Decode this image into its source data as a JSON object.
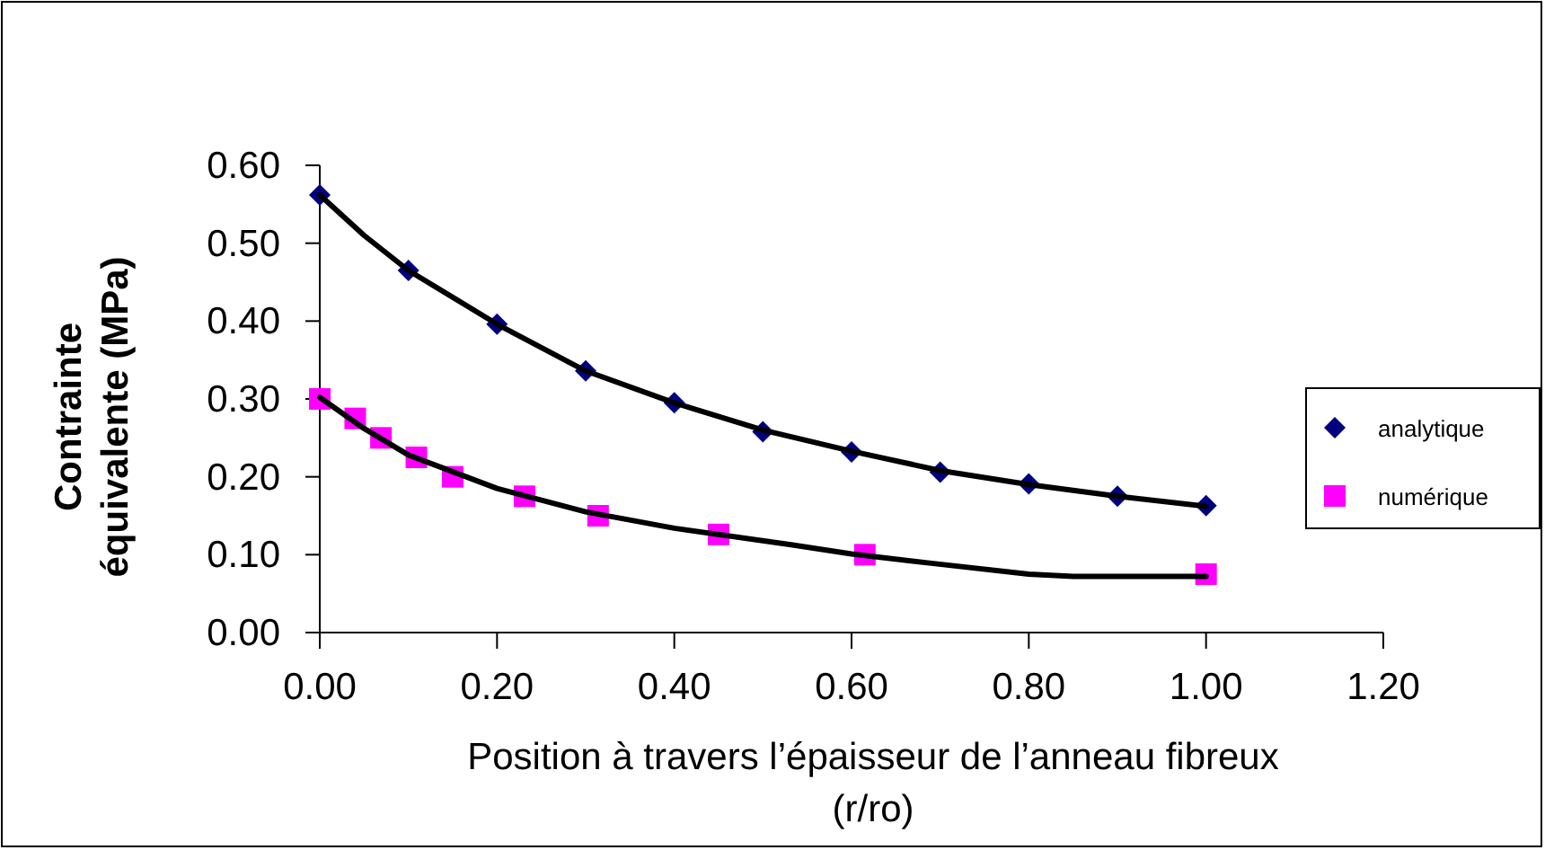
{
  "chart_data": {
    "type": "scatter",
    "xlabel": "Position à travers l’épaisseur de l’anneau fibreux\n(r/ro)",
    "ylabel": "Contrainte\néquivalente (MPa)",
    "xlim": [
      0,
      1.2
    ],
    "xticks": [
      {
        "value": 0,
        "label": "0.00"
      },
      {
        "value": 0.2,
        "label": "0.20"
      },
      {
        "value": 0.4,
        "label": "0.40"
      },
      {
        "value": 0.6,
        "label": "0.60"
      },
      {
        "value": 0.8,
        "label": "0.80"
      },
      {
        "value": 1,
        "label": "1.00"
      },
      {
        "value": 1.2,
        "label": "1.20"
      }
    ],
    "ylim": [
      0,
      0.6
    ],
    "yticks": [
      {
        "value": 0,
        "label": "0.00"
      },
      {
        "value": 0.1,
        "label": "0.10"
      },
      {
        "value": 0.2,
        "label": "0.20"
      },
      {
        "value": 0.3,
        "label": "0.30"
      },
      {
        "value": 0.4,
        "label": "0.40"
      },
      {
        "value": 0.5,
        "label": "0.50"
      },
      {
        "value": 0.6,
        "label": "0.60"
      }
    ],
    "grid": false,
    "legend": "right",
    "series": [
      {
        "type": "line",
        "color": "#000000",
        "marker": "none",
        "x": [
          0,
          0.05,
          0.1,
          0.2,
          0.3,
          0.4,
          0.5,
          0.6,
          0.7,
          0.8,
          0.9,
          1.0
        ],
        "values": [
          0.562,
          0.51,
          0.465,
          0.396,
          0.336,
          0.295,
          0.26,
          0.233,
          0.208,
          0.19,
          0.175,
          0.162
        ]
      },
      {
        "type": "line",
        "color": "#000000",
        "marker": "none",
        "x": [
          0,
          0.05,
          0.1,
          0.2,
          0.3,
          0.4,
          0.53,
          0.6,
          0.69,
          0.8,
          0.85,
          1.0
        ],
        "values": [
          0.302,
          0.262,
          0.228,
          0.185,
          0.155,
          0.134,
          0.113,
          0.101,
          0.089,
          0.075,
          0.072,
          0.072
        ]
      },
      {
        "name": "analytique",
        "color": "#000080",
        "marker": "diamond",
        "x": [
          0,
          0.1,
          0.2,
          0.3,
          0.4,
          0.5,
          0.6,
          0.7,
          0.8,
          0.9,
          1.0
        ],
        "values": [
          0.562,
          0.465,
          0.396,
          0.336,
          0.295,
          0.258,
          0.232,
          0.206,
          0.191,
          0.175,
          0.163
        ]
      },
      {
        "name": "numérique",
        "color": "#ff00ff",
        "marker": "square",
        "x": [
          0,
          0.04,
          0.069,
          0.109,
          0.15,
          0.231,
          0.314,
          0.45,
          0.615,
          1.0
        ],
        "values": [
          0.3,
          0.275,
          0.25,
          0.225,
          0.2,
          0.175,
          0.15,
          0.126,
          0.1,
          0.075
        ]
      }
    ]
  }
}
